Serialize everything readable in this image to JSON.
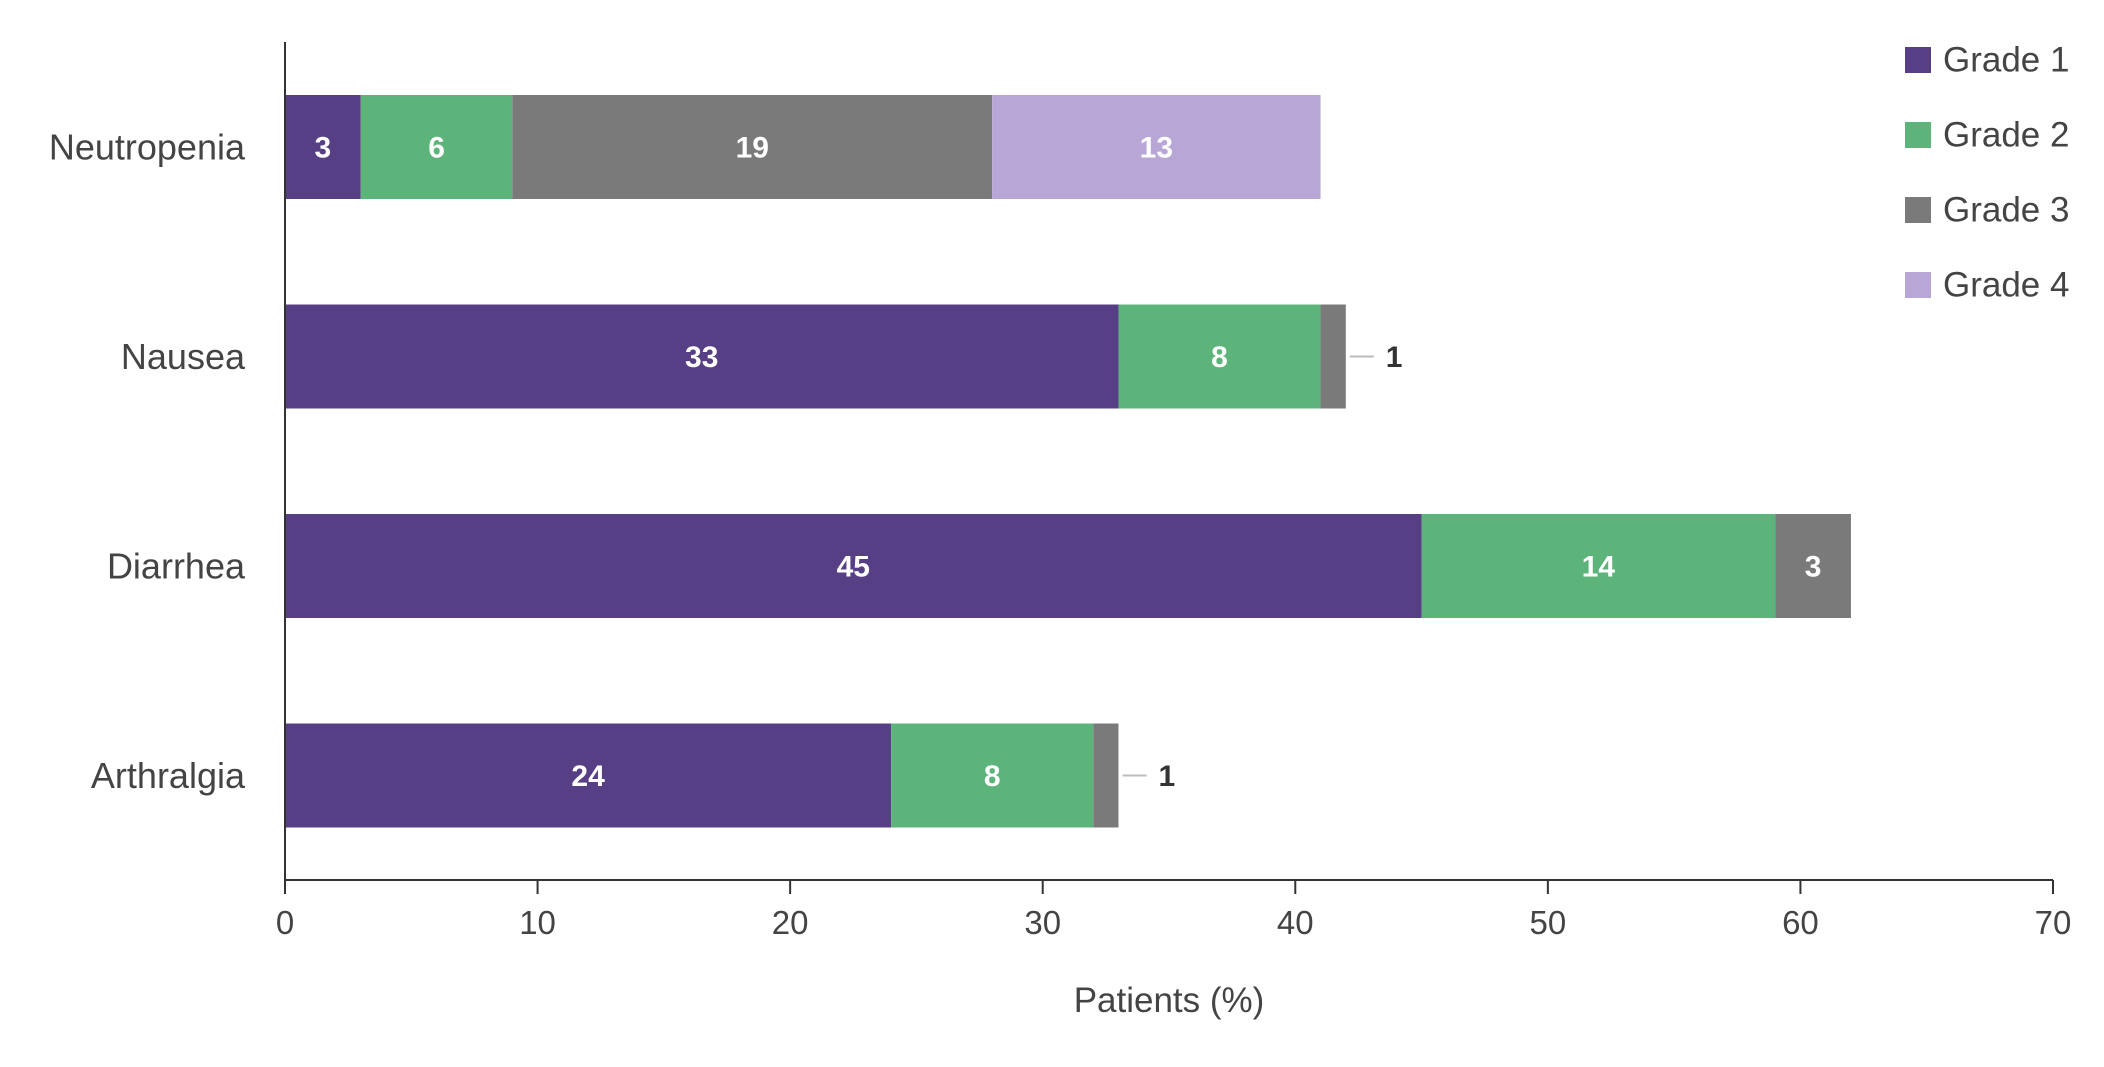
{
  "chart_data": {
    "type": "bar",
    "orientation": "horizontal",
    "stacked": true,
    "categories": [
      "Neutropenia",
      "Nausea",
      "Diarrhea",
      "Arthralgia"
    ],
    "series": [
      {
        "name": "Grade 1",
        "color": "#573f85",
        "values": [
          3,
          33,
          45,
          24
        ]
      },
      {
        "name": "Grade 2",
        "color": "#5db47b",
        "values": [
          6,
          8,
          14,
          8
        ]
      },
      {
        "name": "Grade 3",
        "color": "#7a7a7a",
        "values": [
          19,
          1,
          3,
          1
        ]
      },
      {
        "name": "Grade 4",
        "color": "#b8a7d6",
        "values": [
          13,
          0,
          0,
          0
        ]
      }
    ],
    "xlabel": "Patients (%)",
    "ylabel": "",
    "xlim": [
      0,
      70
    ],
    "xticks": [
      0,
      10,
      20,
      30,
      40,
      50,
      60,
      70
    ],
    "grid": false,
    "legend_position": "top-right"
  }
}
